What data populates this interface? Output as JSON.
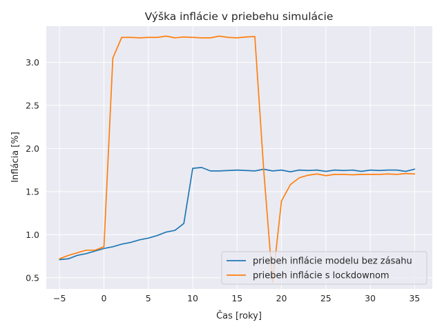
{
  "chart_data": {
    "type": "line",
    "title": "Výška inflácie v priebehu simulácie",
    "xlabel": "Čas [roky]",
    "ylabel": "Inflácia [%]",
    "xlim": [
      -6.5,
      37.0
    ],
    "ylim": [
      0.37,
      3.42
    ],
    "xticks": [
      -5,
      0,
      5,
      10,
      15,
      20,
      25,
      30,
      35
    ],
    "yticks": [
      0.5,
      1.0,
      1.5,
      2.0,
      2.5,
      3.0
    ],
    "xtick_labels": [
      "−5",
      "0",
      "5",
      "10",
      "15",
      "20",
      "25",
      "30",
      "35"
    ],
    "ytick_labels": [
      "0.5",
      "1.0",
      "1.5",
      "2.0",
      "2.5",
      "3.0"
    ],
    "grid": true,
    "legend_position": "lower-right",
    "x": [
      -5,
      -4,
      -3,
      -2,
      -1,
      0,
      1,
      2,
      3,
      4,
      5,
      6,
      7,
      8,
      9,
      10,
      11,
      12,
      13,
      14,
      15,
      16,
      17,
      18,
      19,
      20,
      21,
      22,
      23,
      24,
      25,
      26,
      27,
      28,
      29,
      30,
      31,
      32,
      33,
      34,
      35
    ],
    "series": [
      {
        "name": "priebeh inflácie modelu bez zásahu",
        "color": "#1f77b4",
        "values": [
          0.71,
          0.72,
          0.76,
          0.78,
          0.81,
          0.84,
          0.86,
          0.89,
          0.91,
          0.94,
          0.96,
          0.99,
          1.03,
          1.05,
          1.13,
          1.77,
          1.78,
          1.74,
          1.74,
          1.745,
          1.75,
          1.745,
          1.74,
          1.76,
          1.74,
          1.75,
          1.73,
          1.75,
          1.745,
          1.75,
          1.735,
          1.75,
          1.745,
          1.75,
          1.735,
          1.75,
          1.745,
          1.75,
          1.75,
          1.735,
          1.76
        ]
      },
      {
        "name": "priebeh inflácie s lockdownom",
        "color": "#ff7f0e",
        "values": [
          0.72,
          0.76,
          0.79,
          0.82,
          0.82,
          0.86,
          3.05,
          3.29,
          3.29,
          3.285,
          3.29,
          3.29,
          3.305,
          3.285,
          3.295,
          3.29,
          3.285,
          3.285,
          3.305,
          3.29,
          3.285,
          3.295,
          3.3,
          1.75,
          0.45,
          1.39,
          1.58,
          1.66,
          1.69,
          1.705,
          1.685,
          1.7,
          1.7,
          1.695,
          1.7,
          1.7,
          1.7,
          1.705,
          1.7,
          1.71,
          1.705
        ]
      }
    ]
  }
}
